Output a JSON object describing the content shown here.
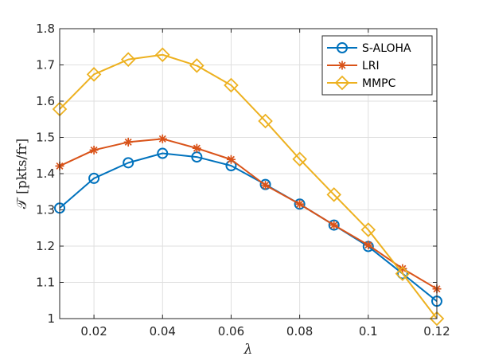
{
  "chart_data": {
    "type": "line",
    "xlabel": "λ",
    "ylabel": "𝒯 [pkts/fr]",
    "xlim": [
      0.01,
      0.12
    ],
    "ylim": [
      1.0,
      1.8
    ],
    "x_ticks": [
      0.02,
      0.04,
      0.06,
      0.08,
      0.1,
      0.12
    ],
    "x_tick_labels": [
      "0.02",
      "0.04",
      "0.06",
      "0.08",
      "0.1",
      "0.12"
    ],
    "y_ticks": [
      1.0,
      1.1,
      1.2,
      1.3,
      1.4,
      1.5,
      1.6,
      1.7,
      1.8
    ],
    "y_tick_labels": [
      "1",
      "1.1",
      "1.2",
      "1.3",
      "1.4",
      "1.5",
      "1.6",
      "1.7",
      "1.8"
    ],
    "grid": true,
    "legend_position": "top-right",
    "x": [
      0.01,
      0.02,
      0.03,
      0.04,
      0.05,
      0.06,
      0.07,
      0.08,
      0.09,
      0.1,
      0.11,
      0.12
    ],
    "series": [
      {
        "name": "S-ALOHA",
        "color": "#0072BD",
        "marker": "circle",
        "values": [
          1.305,
          1.387,
          1.43,
          1.456,
          1.446,
          1.422,
          1.37,
          1.316,
          1.258,
          1.199,
          1.124,
          1.048
        ]
      },
      {
        "name": "LRI",
        "color": "#D95319",
        "marker": "asterisk",
        "values": [
          1.421,
          1.465,
          1.487,
          1.496,
          1.47,
          1.439,
          1.368,
          1.316,
          1.258,
          1.203,
          1.138,
          1.082
        ]
      },
      {
        "name": "MMPC",
        "color": "#EDB120",
        "marker": "diamond",
        "values": [
          1.578,
          1.674,
          1.715,
          1.728,
          1.698,
          1.644,
          1.545,
          1.44,
          1.342,
          1.245,
          1.124,
          1.0
        ]
      }
    ]
  }
}
